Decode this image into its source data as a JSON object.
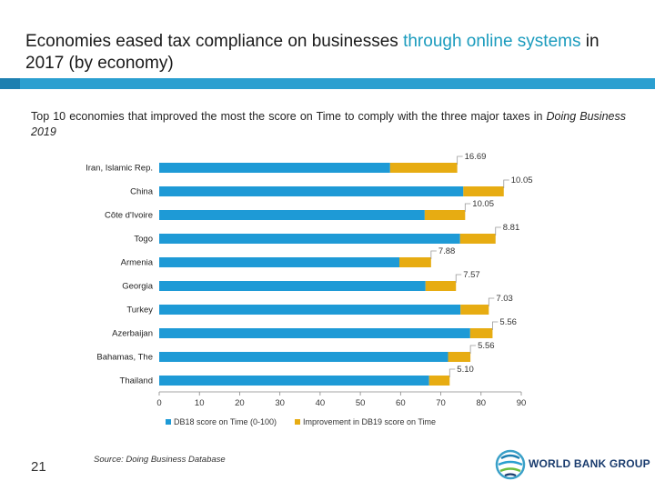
{
  "slide": {
    "title_part1": "Economies eased tax compliance on businesses ",
    "title_highlight": "through online systems",
    "title_part2": " in 2017 (by economy)",
    "subtitle_main": "Top 10 economies that improved the most the score on Time to comply with the three major taxes in ",
    "subtitle_italic": "Doing Business 2019",
    "page_number": "21",
    "source": "Source: Doing Business Database",
    "logo_text": "WORLD BANK GROUP"
  },
  "colors": {
    "accent": "#1a9bbd",
    "rule": "#2b9fd0",
    "series1": "#1e9ad6",
    "series2": "#e7ac12"
  },
  "chart_data": {
    "type": "bar",
    "orientation": "horizontal",
    "stacked": true,
    "categories": [
      "Iran, Islamic Rep.",
      "China",
      "Côte d'Ivoire",
      "Togo",
      "Armenia",
      "Georgia",
      "Turkey",
      "Azerbaijan",
      "Bahamas, The",
      "Thailand"
    ],
    "series": [
      {
        "name": "DB18 score on Time (0-100)",
        "values": [
          57.4,
          75.6,
          66.0,
          74.8,
          59.7,
          66.2,
          74.9,
          77.3,
          71.8,
          67.1
        ]
      },
      {
        "name": "Improvement in DB19 score on Time",
        "values": [
          16.69,
          10.05,
          10.05,
          8.81,
          7.88,
          7.57,
          7.03,
          5.56,
          5.56,
          5.1
        ]
      }
    ],
    "data_labels": [
      "16.69",
      "10.05",
      "10.05",
      "8.81",
      "7.88",
      "7.57",
      "7.03",
      "5.56",
      "5.56",
      "5.10"
    ],
    "xlim": [
      0,
      90
    ],
    "xticks": [
      "0",
      "10",
      "20",
      "30",
      "40",
      "50",
      "60",
      "70",
      "80",
      "90"
    ],
    "grid": false,
    "legend": "bottom"
  }
}
